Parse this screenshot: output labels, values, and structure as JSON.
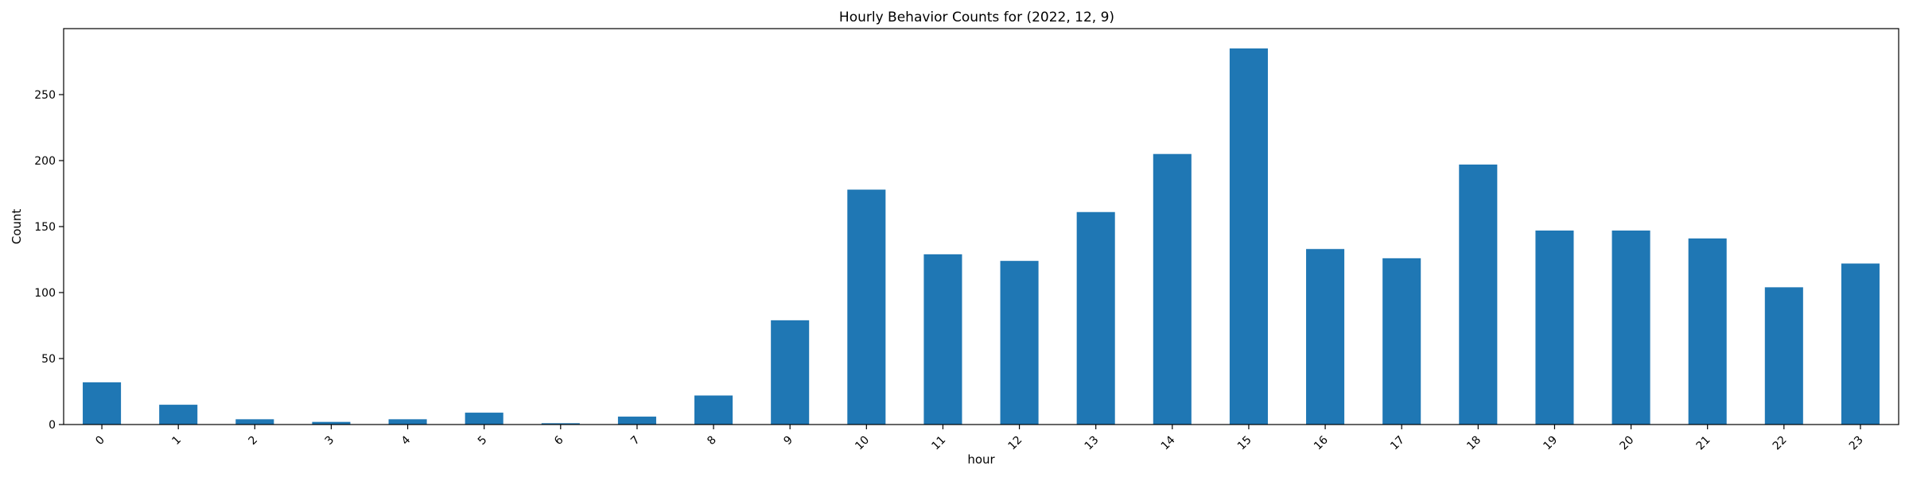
{
  "chart_data": {
    "type": "bar",
    "title": "Hourly Behavior Counts for (2022, 12, 9)",
    "xlabel": "hour",
    "ylabel": "Count",
    "categories": [
      "0",
      "1",
      "2",
      "3",
      "4",
      "5",
      "6",
      "7",
      "8",
      "9",
      "10",
      "11",
      "12",
      "13",
      "14",
      "15",
      "16",
      "17",
      "18",
      "19",
      "20",
      "21",
      "22",
      "23"
    ],
    "values": [
      32,
      15,
      4,
      2,
      4,
      9,
      1,
      6,
      22,
      79,
      178,
      129,
      124,
      161,
      205,
      285,
      133,
      126,
      197,
      147,
      147,
      141,
      104,
      122
    ],
    "ylim": [
      0,
      300
    ],
    "yticks": [
      0,
      50,
      100,
      150,
      200,
      250
    ],
    "bar_color": "#1f77b4",
    "grid": false,
    "legend": "none"
  }
}
